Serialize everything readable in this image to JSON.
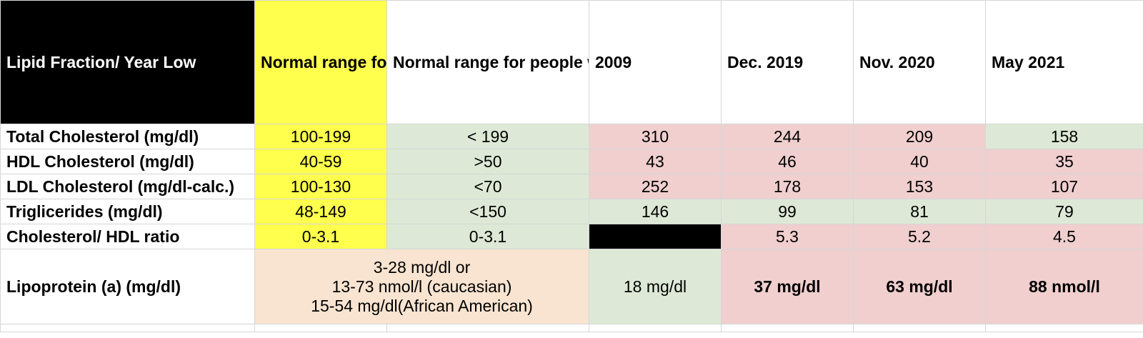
{
  "header": {
    "label_col": "Lipid Fraction/ Year Low",
    "normal_all": "Normal range for all people",
    "normal_risk": "Normal range for people with risk factors (according to Duke standards, starting in 2021)",
    "years": [
      "2009",
      "Dec. 2019",
      "Nov. 2020",
      "May 2021"
    ]
  },
  "rows": [
    {
      "label": "Total Cholesterol (mg/dl)",
      "normal_all": "100-199",
      "normal_risk": "< 199",
      "values": [
        "310",
        "244",
        "209",
        "158"
      ]
    },
    {
      "label": "HDL Cholesterol (mg/dl)",
      "normal_all": "40-59",
      "normal_risk": ">50",
      "values": [
        "43",
        "46",
        "40",
        "35"
      ]
    },
    {
      "label": "LDL Cholesterol (mg/dl-calc.)",
      "normal_all": "100-130",
      "normal_risk": "<70",
      "values": [
        "252",
        "178",
        "153",
        "107"
      ]
    },
    {
      "label": "Triglicerides (mg/dl)",
      "normal_all": "48-149",
      "normal_risk": "<150",
      "values": [
        "146",
        "99",
        "81",
        "79"
      ]
    },
    {
      "label": "Cholesterol/ HDL ratio",
      "normal_all": "0-3.1",
      "normal_risk": "0-3.1",
      "values": [
        "",
        "5.3",
        "5.2",
        "4.5"
      ]
    }
  ],
  "lipoprotein": {
    "label": "Lipoprotein (a) (mg/dl)",
    "normal_lines": [
      "3-28 mg/dl or",
      "13-73 nmol/l (caucasian)",
      "15-54 mg/dl(African American)"
    ],
    "values": [
      "18 mg/dl",
      "37 mg/dl",
      "63 mg/dl",
      "88 nmol/l"
    ]
  },
  "colors": {
    "header_black": "#000000",
    "normal_yellow": "#ffff4d",
    "in_range_green": "#dde9d6",
    "out_of_range_red": "#f1cfcf",
    "lipoprotein_range_peach": "#f8e4d0"
  }
}
